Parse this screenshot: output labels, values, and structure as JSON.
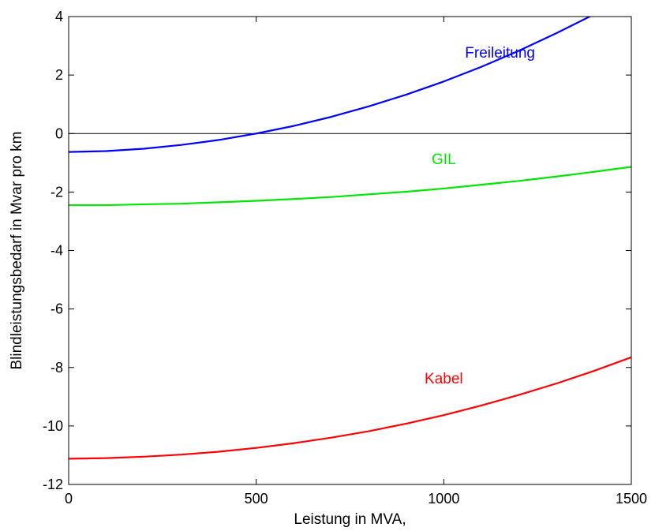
{
  "chart_data": {
    "type": "line",
    "title": "",
    "xlabel": "Leistung in MVA,",
    "ylabel": "Blindleistungsbedarf in Mvar pro km",
    "xlim": [
      0,
      1500
    ],
    "ylim": [
      -12,
      4
    ],
    "xticks": [
      0,
      500,
      1000,
      1500
    ],
    "yticks": [
      -12,
      -10,
      -8,
      -6,
      -4,
      -2,
      0,
      2,
      4
    ],
    "grid": false,
    "zero_line": 0,
    "series": [
      {
        "name": "Freileitung",
        "color": "#0000ff",
        "x": [
          0,
          100,
          200,
          300,
          400,
          500,
          600,
          700,
          800,
          900,
          1000,
          1100,
          1200,
          1300,
          1400,
          1500
        ],
        "y": [
          -0.63,
          -0.6,
          -0.52,
          -0.39,
          -0.22,
          0.0,
          0.26,
          0.57,
          0.93,
          1.33,
          1.78,
          2.28,
          2.83,
          3.43,
          4.07,
          4.76
        ]
      },
      {
        "name": "GIL",
        "color": "#00e600",
        "x": [
          0,
          100,
          200,
          300,
          400,
          500,
          600,
          700,
          800,
          900,
          1000,
          1100,
          1200,
          1300,
          1400,
          1500
        ],
        "y": [
          -2.45,
          -2.45,
          -2.42,
          -2.4,
          -2.35,
          -2.3,
          -2.24,
          -2.17,
          -2.08,
          -1.99,
          -1.88,
          -1.75,
          -1.62,
          -1.47,
          -1.31,
          -1.14
        ]
      },
      {
        "name": "Kabel",
        "color": "#ff0000",
        "x": [
          0,
          100,
          200,
          300,
          400,
          500,
          600,
          700,
          800,
          900,
          1000,
          1100,
          1200,
          1300,
          1400,
          1500
        ],
        "y": [
          -11.12,
          -11.1,
          -11.05,
          -10.98,
          -10.88,
          -10.75,
          -10.59,
          -10.4,
          -10.18,
          -9.92,
          -9.63,
          -9.3,
          -8.94,
          -8.55,
          -8.12,
          -7.65
        ]
      }
    ]
  }
}
